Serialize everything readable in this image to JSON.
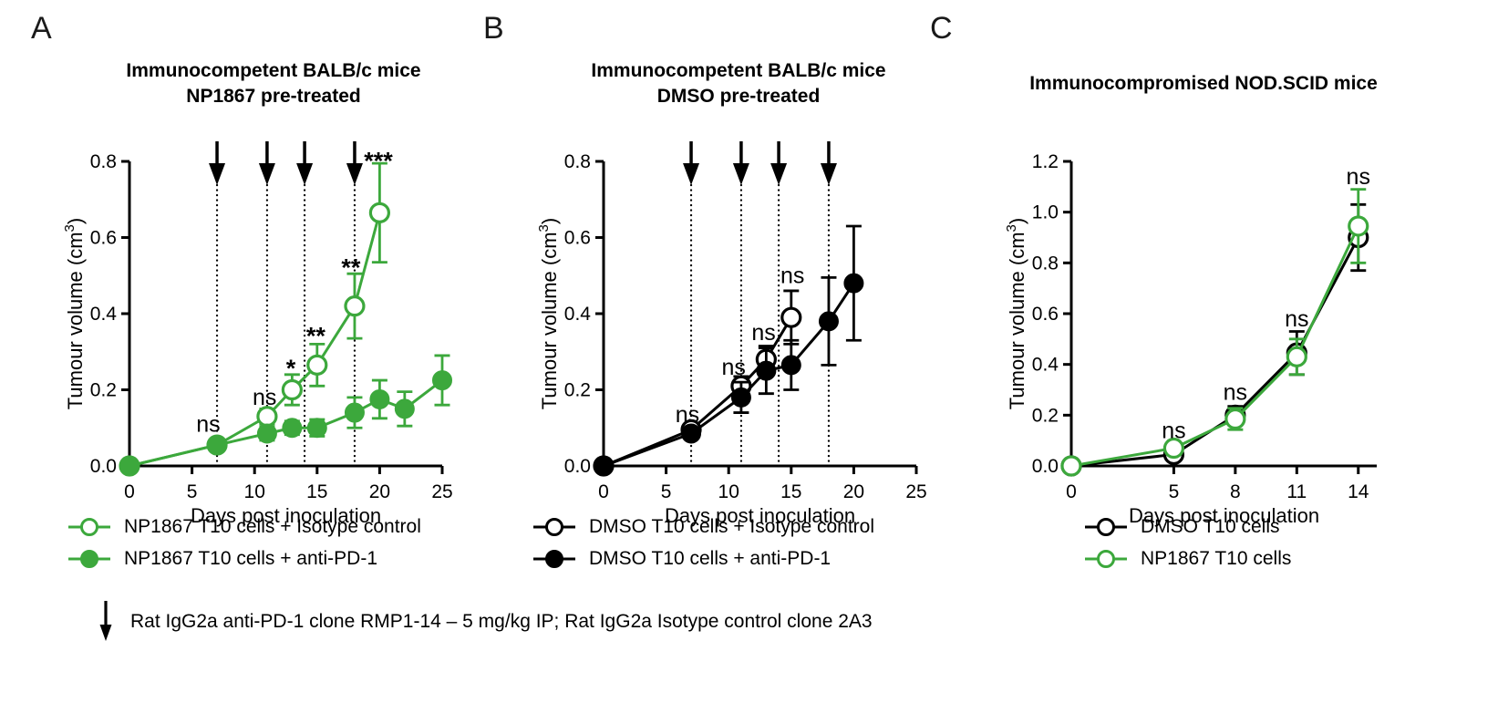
{
  "figure": {
    "background": "#ffffff",
    "colors": {
      "green": "#3CA83C",
      "black": "#000000"
    },
    "footnote": {
      "icon": "down-arrow",
      "text": "Rat IgG2a anti-PD-1 clone RMP1-14 – 5 mg/kg IP; Rat IgG2a Isotype control clone 2A3"
    }
  },
  "chart_data": [
    {
      "id": "A",
      "panel_label": "A",
      "type": "line",
      "title_line1": "Immunocompetent BALB/c mice",
      "title_line2": "NP1867 pre-treated",
      "xlabel": "Days post inoculation",
      "ylabel_prefix": "Tumour volume (cm",
      "ylabel_sup": "3",
      "ylabel_suffix": ")",
      "xlim": [
        0,
        25
      ],
      "ylim": [
        0,
        0.8
      ],
      "xticks": [
        0,
        5,
        10,
        15,
        20,
        25
      ],
      "yticks": [
        0,
        0.2,
        0.4,
        0.6,
        0.8
      ],
      "grid": false,
      "legend_position": "below",
      "treatment_days": [
        7,
        11,
        14,
        18
      ],
      "series": [
        {
          "name": "NP1867 T10 cells + Isotype control",
          "marker": "open",
          "color": "#3CA83C",
          "x": [
            0,
            7,
            11,
            13,
            15,
            18,
            20
          ],
          "y": [
            0,
            0.055,
            0.13,
            0.2,
            0.265,
            0.42,
            0.665
          ],
          "err": [
            0,
            0.012,
            0.02,
            0.04,
            0.055,
            0.085,
            0.13
          ]
        },
        {
          "name": "NP1867 T10 cells + anti-PD-1",
          "marker": "filled",
          "color": "#3CA83C",
          "x": [
            0,
            7,
            11,
            13,
            15,
            18,
            20,
            22,
            25
          ],
          "y": [
            0,
            0.055,
            0.085,
            0.1,
            0.1,
            0.14,
            0.175,
            0.15,
            0.225
          ],
          "err": [
            0,
            0.012,
            0.018,
            0.018,
            0.022,
            0.04,
            0.05,
            0.045,
            0.065
          ]
        }
      ],
      "significance": [
        {
          "x": 6.3,
          "y": 0.09,
          "label": "ns"
        },
        {
          "x": 10.8,
          "y": 0.16,
          "label": "ns"
        },
        {
          "x": 12.9,
          "y": 0.235,
          "label": "*"
        },
        {
          "x": 14.9,
          "y": 0.32,
          "label": "**"
        },
        {
          "x": 17.7,
          "y": 0.5,
          "label": "**"
        },
        {
          "x": 19.9,
          "y": 0.78,
          "label": "***"
        }
      ],
      "legend": [
        {
          "marker": "open",
          "color": "#3CA83C",
          "label": "NP1867 T10 cells + Isotype control"
        },
        {
          "marker": "filled",
          "color": "#3CA83C",
          "label": "NP1867 T10 cells + anti-PD-1"
        }
      ]
    },
    {
      "id": "B",
      "panel_label": "B",
      "type": "line",
      "title_line1": "Immunocompetent BALB/c mice",
      "title_line2": "DMSO pre-treated",
      "xlabel": "Days post inoculation",
      "ylabel_prefix": "Tumour volume (cm",
      "ylabel_sup": "3",
      "ylabel_suffix": ")",
      "xlim": [
        0,
        25
      ],
      "ylim": [
        0,
        0.8
      ],
      "xticks": [
        0,
        5,
        10,
        15,
        20,
        25
      ],
      "yticks": [
        0,
        0.2,
        0.4,
        0.6,
        0.8
      ],
      "grid": false,
      "legend_position": "below",
      "treatment_days": [
        7,
        11,
        14,
        18
      ],
      "series": [
        {
          "name": "DMSO T10 cells + Isotype control",
          "marker": "open",
          "color": "#000000",
          "x": [
            0,
            7,
            11,
            13,
            15
          ],
          "y": [
            0,
            0.095,
            0.21,
            0.28,
            0.39
          ],
          "err": [
            0,
            0.012,
            0.025,
            0.035,
            0.07
          ]
        },
        {
          "name": "DMSO T10 cells + anti-PD-1",
          "marker": "filled",
          "color": "#000000",
          "x": [
            0,
            7,
            11,
            13,
            15,
            18,
            20
          ],
          "y": [
            0,
            0.085,
            0.18,
            0.25,
            0.265,
            0.38,
            0.48
          ],
          "err": [
            0,
            0.012,
            0.04,
            0.06,
            0.065,
            0.115,
            0.15
          ]
        }
      ],
      "significance": [
        {
          "x": 6.7,
          "y": 0.115,
          "label": "ns"
        },
        {
          "x": 10.4,
          "y": 0.24,
          "label": "ns"
        },
        {
          "x": 12.8,
          "y": 0.33,
          "label": "ns"
        },
        {
          "x": 15.1,
          "y": 0.48,
          "label": "ns"
        }
      ],
      "legend": [
        {
          "marker": "open",
          "color": "#000000",
          "label": "DMSO T10 cells + Isotype control"
        },
        {
          "marker": "filled",
          "color": "#000000",
          "label": "DMSO T10 cells + anti-PD-1"
        }
      ]
    },
    {
      "id": "C",
      "panel_label": "C",
      "type": "line",
      "title_line1": "Immunocompromised NOD.SCID mice",
      "xlabel": "Days post inoculation",
      "ylabel_prefix": "Tumour volume (cm",
      "ylabel_sup": "3",
      "ylabel_suffix": ")",
      "xlim": [
        0,
        14.9
      ],
      "ylim": [
        0,
        1.2
      ],
      "xticks": [
        0,
        5,
        8,
        11,
        14
      ],
      "yticks": [
        0,
        0.2,
        0.4,
        0.6,
        0.8,
        1.0,
        1.2
      ],
      "grid": false,
      "legend_position": "below",
      "treatment_days": [],
      "series": [
        {
          "name": "DMSO T10 cells",
          "marker": "open",
          "color": "#000000",
          "x": [
            0,
            5,
            8,
            11,
            14
          ],
          "y": [
            0,
            0.045,
            0.2,
            0.445,
            0.9
          ],
          "err": [
            0,
            0.012,
            0.035,
            0.085,
            0.13
          ]
        },
        {
          "name": "NP1867 T10 cells",
          "marker": "open",
          "color": "#3CA83C",
          "x": [
            0,
            5,
            8,
            11,
            14
          ],
          "y": [
            0,
            0.07,
            0.185,
            0.43,
            0.945
          ],
          "err": [
            0,
            0.012,
            0.042,
            0.07,
            0.145
          ]
        }
      ],
      "significance": [
        {
          "x": 5,
          "y": 0.11,
          "label": "ns"
        },
        {
          "x": 8,
          "y": 0.26,
          "label": "ns"
        },
        {
          "x": 11,
          "y": 0.55,
          "label": "ns"
        },
        {
          "x": 14,
          "y": 1.11,
          "label": "ns"
        }
      ],
      "legend": [
        {
          "marker": "open",
          "color": "#000000",
          "label": "DMSO T10 cells"
        },
        {
          "marker": "open",
          "color": "#3CA83C",
          "label": "NP1867 T10 cells"
        }
      ]
    }
  ]
}
